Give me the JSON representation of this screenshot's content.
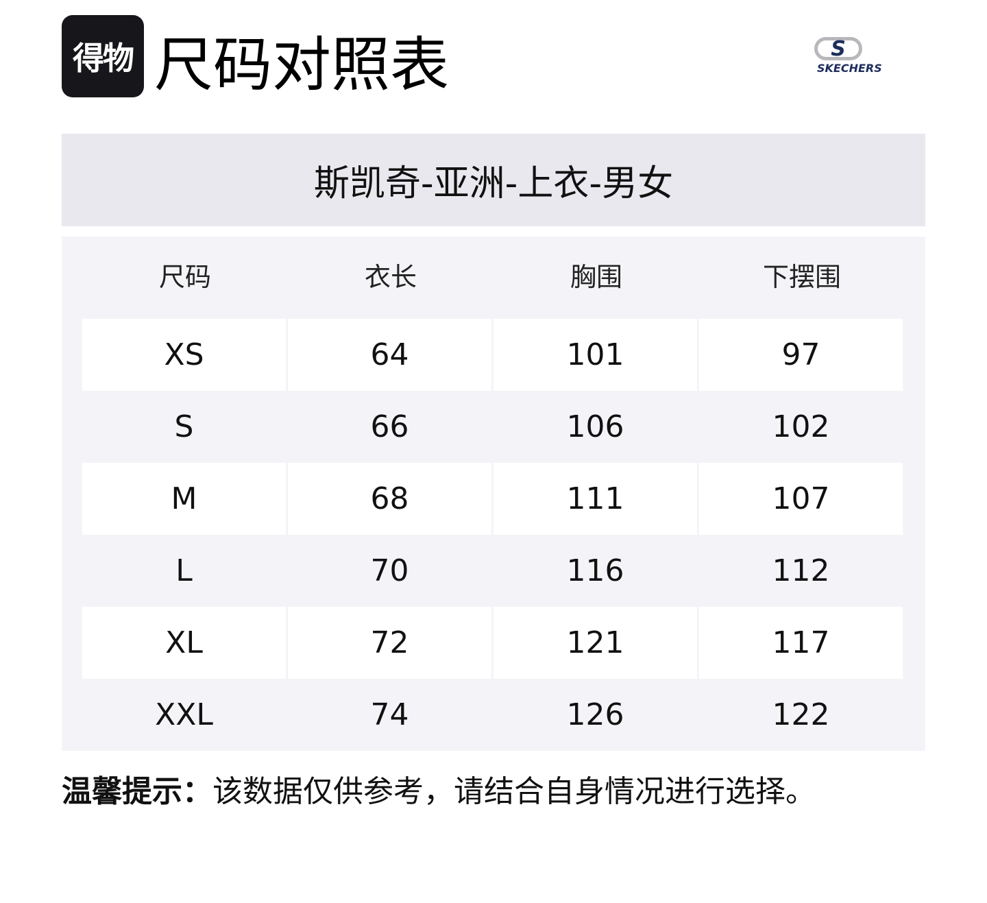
{
  "logo": {
    "text": "得物"
  },
  "title": "尺码对照表",
  "brand": {
    "mark": "S",
    "name": "SKECHERS",
    "color": "#1d2d5c"
  },
  "subtitle": "斯凯奇-亚洲-上衣-男女",
  "table": {
    "headers": [
      "尺码",
      "衣长",
      "胸围",
      "下摆围"
    ],
    "rows": [
      [
        "XS",
        "64",
        "101",
        "97"
      ],
      [
        "S",
        "66",
        "106",
        "102"
      ],
      [
        "M",
        "68",
        "111",
        "107"
      ],
      [
        "L",
        "70",
        "116",
        "112"
      ],
      [
        "XL",
        "72",
        "121",
        "117"
      ],
      [
        "XXL",
        "74",
        "126",
        "122"
      ]
    ]
  },
  "footer": {
    "label": "温馨提示：",
    "text": "该数据仅供参考，请结合自身情况进行选择。"
  }
}
